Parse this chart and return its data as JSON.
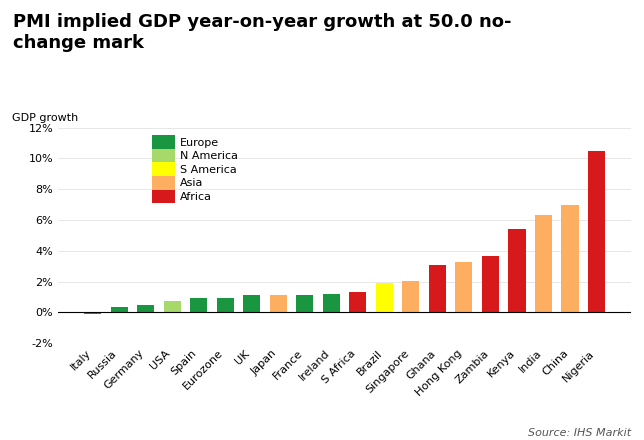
{
  "title": "PMI implied GDP year-on-year growth at 50.0 no-\nchange mark",
  "ylabel": "GDP growth",
  "source": "Source: IHS Markit",
  "categories": [
    "Italy",
    "Russia",
    "Germany",
    "USA",
    "Spain",
    "Eurozone",
    "UK",
    "Japan",
    "France",
    "Ireland",
    "S Africa",
    "Brazil",
    "Singapore",
    "Ghana",
    "Hong Kong",
    "Zambia",
    "Kenya",
    "India",
    "China",
    "Nigeria"
  ],
  "values": [
    -0.1,
    0.35,
    0.5,
    0.75,
    0.95,
    0.95,
    1.1,
    1.1,
    1.15,
    1.2,
    1.35,
    1.9,
    2.05,
    3.05,
    3.3,
    3.65,
    5.4,
    6.35,
    7.0,
    10.5
  ],
  "colors": [
    "#1a9641",
    "#1a9641",
    "#1a9641",
    "#a6d96a",
    "#1a9641",
    "#1a9641",
    "#1a9641",
    "#fdae61",
    "#1a9641",
    "#1a9641",
    "#d7191c",
    "#ffff00",
    "#fdae61",
    "#d7191c",
    "#fdae61",
    "#d7191c",
    "#d7191c",
    "#fdae61",
    "#fdae61",
    "#d7191c"
  ],
  "legend_labels": [
    "Europe",
    "N America",
    "S America",
    "Asia",
    "Africa"
  ],
  "legend_colors": [
    "#1a9641",
    "#a6d96a",
    "#ffff00",
    "#fdae61",
    "#d7191c"
  ],
  "ylim": [
    -2,
    12
  ],
  "yticks": [
    -2,
    0,
    2,
    4,
    6,
    8,
    10,
    12
  ],
  "ytick_labels": [
    "-2%",
    "0%",
    "2%",
    "4%",
    "6%",
    "8%",
    "10%",
    "12%"
  ],
  "background_color": "#ffffff",
  "title_fontsize": 13,
  "label_fontsize": 8,
  "source_fontsize": 8,
  "tick_fontsize": 8
}
